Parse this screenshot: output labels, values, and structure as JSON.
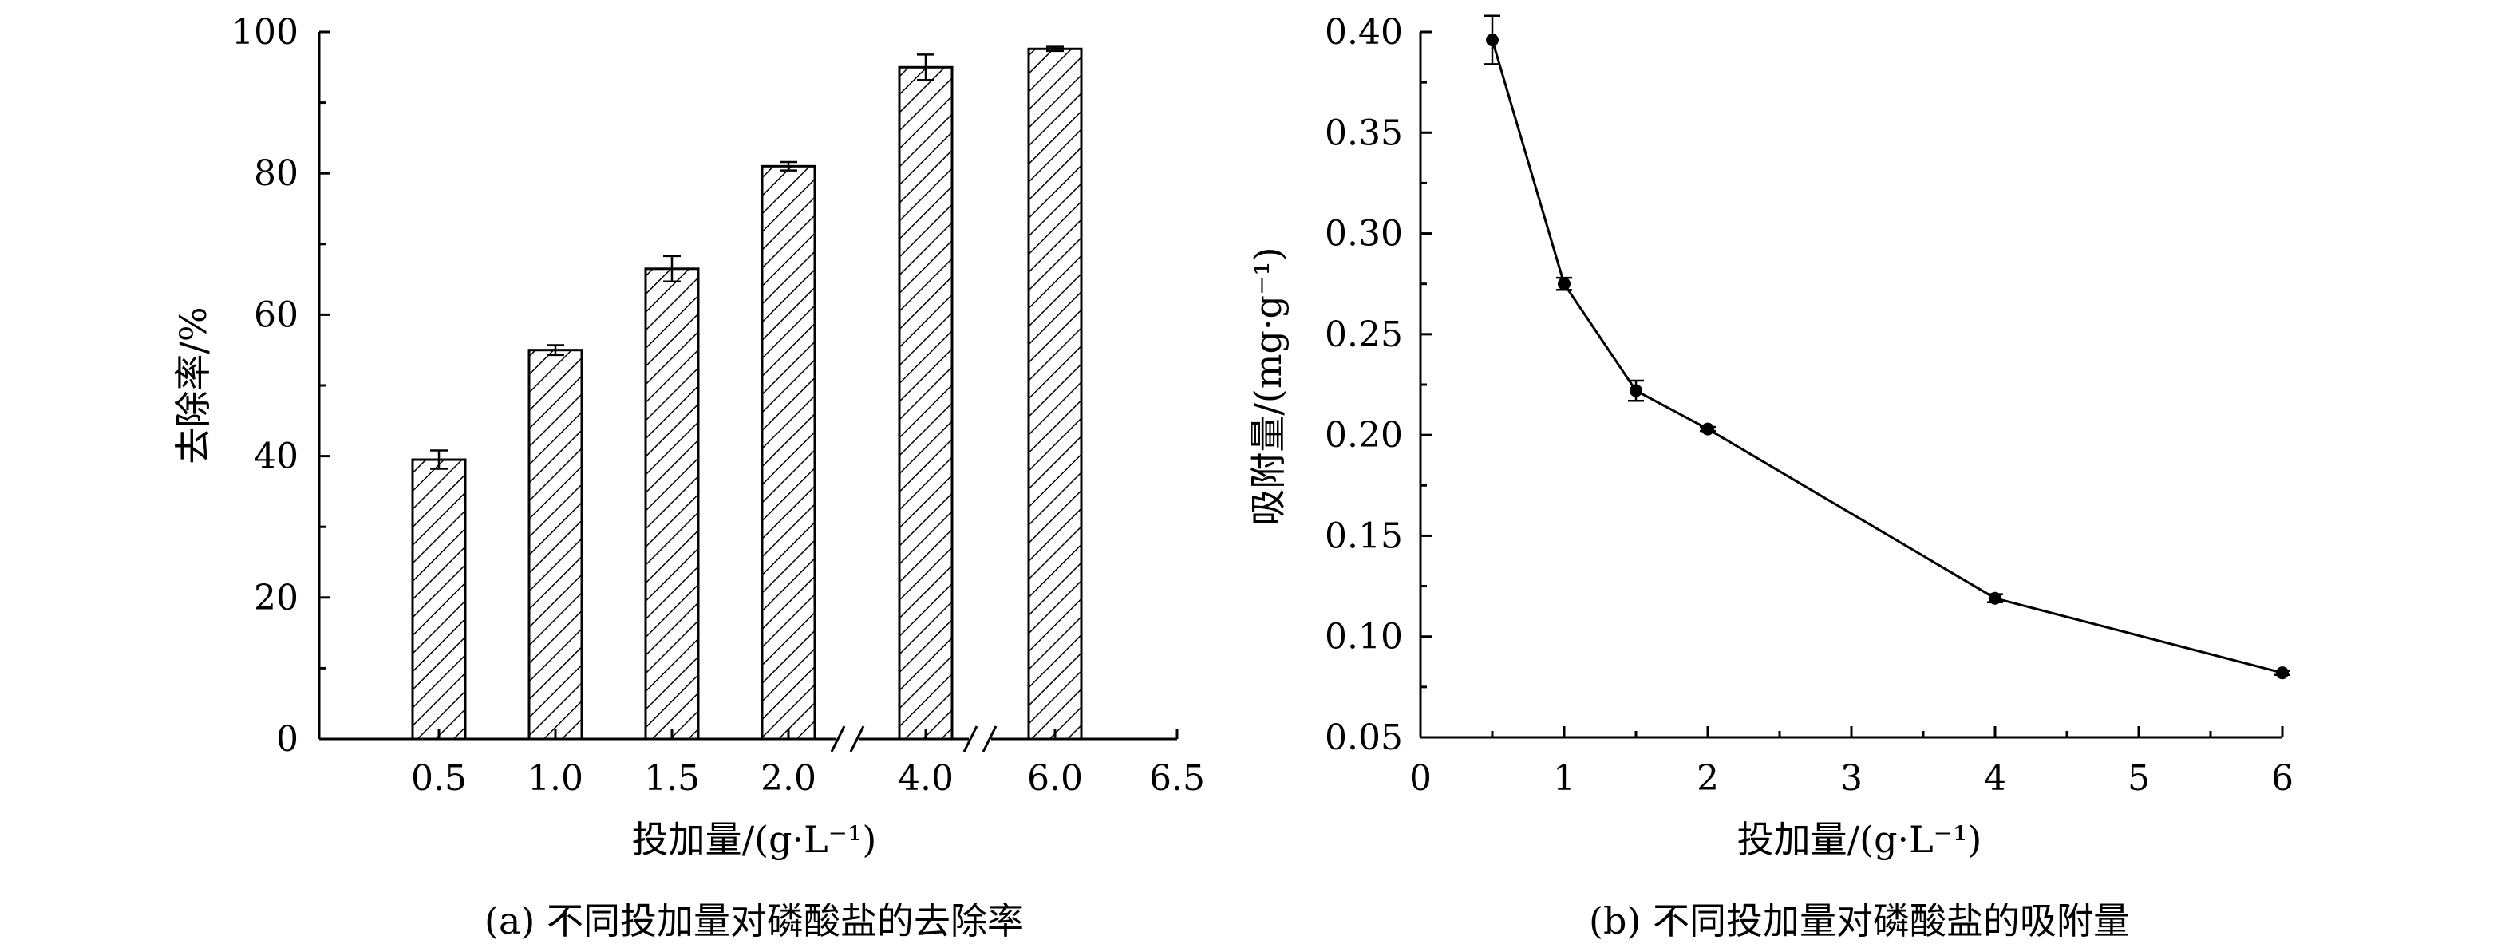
{
  "chart_data": [
    {
      "type": "bar",
      "caption": "(a) 不同投加量对磷酸盐的去除率",
      "xlabel": "投加量/(g·L⁻¹)",
      "ylabel": "去除率/%",
      "categories": [
        "0.5",
        "1.0",
        "1.5",
        "2.0",
        "4.0",
        "6.0"
      ],
      "extra_tick": "6.5",
      "values": [
        39.5,
        55.0,
        66.5,
        81.0,
        95.0,
        97.6
      ],
      "errors": [
        1.3,
        0.7,
        1.8,
        0.6,
        1.8,
        0.3
      ],
      "ylim": [
        0,
        100
      ],
      "yticks": [
        0,
        20,
        40,
        60,
        80,
        100
      ],
      "bar_fill": "hatched",
      "axis_breaks": [
        "2.0-4.0",
        "4.0-6.0"
      ],
      "grid": false,
      "legend": "none"
    },
    {
      "type": "line",
      "caption": "(b) 不同投加量对磷酸盐的吸附量",
      "xlabel": "投加量/(g·L⁻¹)",
      "ylabel": "吸附量/(mg·g⁻¹)",
      "x": [
        0.5,
        1,
        1.5,
        2,
        4,
        6
      ],
      "values": [
        0.396,
        0.275,
        0.222,
        0.203,
        0.119,
        0.082
      ],
      "errors": [
        0.012,
        0.003,
        0.005,
        0.001,
        0.002,
        0.001
      ],
      "xlim": [
        0,
        6
      ],
      "ylim": [
        0.05,
        0.4
      ],
      "xticks": [
        "0",
        "1",
        "2",
        "3",
        "4",
        "5",
        "6"
      ],
      "yticks": [
        "0.05",
        "0.10",
        "0.15",
        "0.20",
        "0.25",
        "0.30",
        "0.35",
        "0.40"
      ],
      "marker": "filled-circle",
      "grid": false,
      "legend": "none"
    }
  ]
}
